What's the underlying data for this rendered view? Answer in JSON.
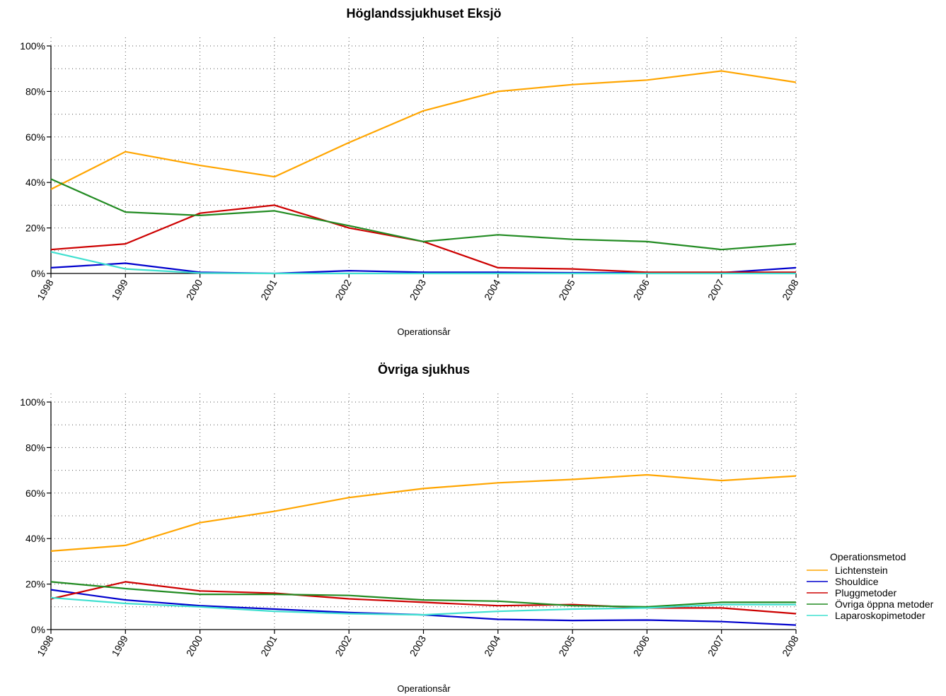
{
  "chart_data": [
    {
      "type": "line",
      "title": "Höglandssjukhuset Eksjö",
      "xlabel": "Operationsår",
      "ylabel": "",
      "x": [
        "1998",
        "1999",
        "2000",
        "2001",
        "2002",
        "2003",
        "2004",
        "2005",
        "2006",
        "2007",
        "2008"
      ],
      "ylim": [
        0,
        100
      ],
      "yticks": [
        "0%",
        "20%",
        "40%",
        "60%",
        "80%",
        "100%"
      ],
      "grid": true,
      "series": [
        {
          "name": "Lichtenstein",
          "color": "#FFA500",
          "values": [
            37,
            53.5,
            47.5,
            42.5,
            57.5,
            71.5,
            80,
            83,
            85,
            89,
            84
          ]
        },
        {
          "name": "Shouldice",
          "color": "#0000CD",
          "values": [
            2.5,
            4.5,
            0.5,
            0,
            1.2,
            0.5,
            0.5,
            0.3,
            0.3,
            0.3,
            2.5
          ]
        },
        {
          "name": "Pluggmetoder",
          "color": "#CD0000",
          "values": [
            10.5,
            13,
            26.5,
            30,
            20,
            14,
            2.5,
            2,
            0.5,
            0.5,
            0.5
          ]
        },
        {
          "name": "Övriga öppna metoder",
          "color": "#228B22",
          "values": [
            41.5,
            27,
            25.5,
            27.5,
            21,
            14,
            17,
            15,
            14,
            10.5,
            13
          ]
        },
        {
          "name": "Laparoskopimetoder",
          "color": "#40E0D0",
          "values": [
            9.5,
            2,
            0.2,
            0,
            0,
            0,
            0,
            0,
            0,
            0,
            0
          ]
        }
      ]
    },
    {
      "type": "line",
      "title": "Övriga sjukhus",
      "xlabel": "Operationsår",
      "ylabel": "",
      "x": [
        "1998",
        "1999",
        "2000",
        "2001",
        "2002",
        "2003",
        "2004",
        "2005",
        "2006",
        "2007",
        "2008"
      ],
      "ylim": [
        0,
        100
      ],
      "yticks": [
        "0%",
        "20%",
        "40%",
        "60%",
        "80%",
        "100%"
      ],
      "grid": true,
      "series": [
        {
          "name": "Lichtenstein",
          "color": "#FFA500",
          "values": [
            34.5,
            37,
            47,
            52,
            58,
            62,
            64.5,
            66,
            68,
            65.5,
            67.5
          ]
        },
        {
          "name": "Shouldice",
          "color": "#0000CD",
          "values": [
            17.5,
            13,
            10.5,
            9,
            7.5,
            6.5,
            4.5,
            4,
            4.2,
            3.5,
            2
          ]
        },
        {
          "name": "Pluggmetoder",
          "color": "#CD0000",
          "values": [
            13.5,
            21,
            17,
            16,
            13.5,
            12,
            10.5,
            11,
            9.5,
            9.5,
            7
          ]
        },
        {
          "name": "Övriga öppna metoder",
          "color": "#228B22",
          "values": [
            21,
            18,
            15.5,
            15.5,
            15,
            13,
            12.5,
            10.5,
            10,
            12,
            12
          ]
        },
        {
          "name": "Laparoskopimetoder",
          "color": "#40E0D0",
          "values": [
            14,
            11.5,
            10,
            8,
            7,
            6.5,
            8,
            9,
            9.5,
            11,
            11
          ]
        }
      ]
    }
  ],
  "legend": {
    "title": "Operationsmetod",
    "placement": "right of bottom chart",
    "items": [
      {
        "label": "Lichtenstein",
        "color": "#FFA500"
      },
      {
        "label": "Shouldice",
        "color": "#0000CD"
      },
      {
        "label": "Pluggmetoder",
        "color": "#CD0000"
      },
      {
        "label": "Övriga öppna metoder",
        "color": "#228B22"
      },
      {
        "label": "Laparoskopimetoder",
        "color": "#40E0D0"
      }
    ]
  }
}
